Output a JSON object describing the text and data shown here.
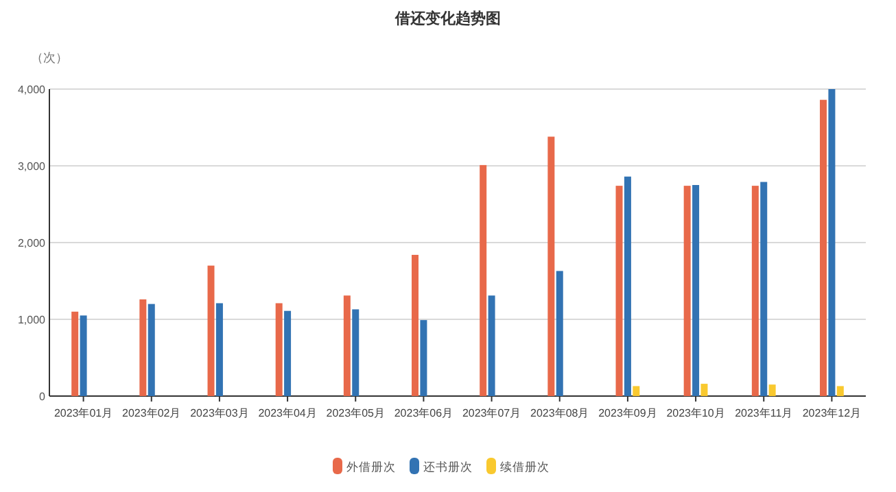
{
  "chart_data": {
    "type": "bar",
    "title": "借还变化趋势图",
    "ylabel": "（次）",
    "categories": [
      "2023年01月",
      "2023年02月",
      "2023年03月",
      "2023年04月",
      "2023年05月",
      "2023年06月",
      "2023年07月",
      "2023年08月",
      "2023年09月",
      "2023年10月",
      "2023年11月",
      "2023年12月"
    ],
    "series": [
      {
        "name": "外借册次",
        "color": "#e8694a",
        "values": [
          1100,
          1260,
          1700,
          1210,
          1310,
          1840,
          3010,
          3380,
          2740,
          2740,
          2740,
          3860
        ]
      },
      {
        "name": "还书册次",
        "color": "#3273b3",
        "values": [
          1050,
          1200,
          1210,
          1110,
          1130,
          990,
          1310,
          1630,
          2860,
          2750,
          2790,
          4000
        ]
      },
      {
        "name": "续借册次",
        "color": "#f9c92f",
        "values": [
          null,
          null,
          null,
          null,
          null,
          null,
          null,
          null,
          130,
          160,
          150,
          130
        ]
      }
    ],
    "ylim": [
      0,
      4000
    ],
    "yticks": [
      0,
      {
        "value": 1000,
        "label": "1,000"
      },
      {
        "value": 2000,
        "label": "2,000"
      },
      {
        "value": 3000,
        "label": "3,000"
      },
      {
        "value": 4000,
        "label": "4,000"
      }
    ],
    "grid": "y",
    "legend": "bottom"
  }
}
